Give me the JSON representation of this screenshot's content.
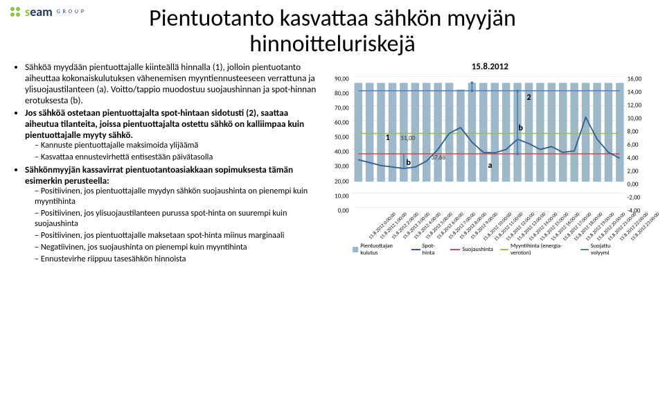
{
  "logo": {
    "brand_s": "s",
    "brand_rest": "eam",
    "sub": "G R O U P"
  },
  "title": "Pientuotanto kasvattaa sähkön myyjän hinnoitteluriskejä",
  "bullets": {
    "p1": "Sähköä myydään pientuottajalle kiinteällä hinnalla (1), jolloin pientuotanto aiheuttaa kokonaiskulutuksen vähenemisen myyntiennusteeseen verrattuna ja ylisuojaustilanteen (a). Voitto/tappio  muodostuu suojaushinnan ja spot-hinnan erotuksesta (b).",
    "p2": "Jos sähköä ostetaan pientuottajalta spot-hintaan sidotusti (2), saattaa aiheutua tilanteita, joissa pientuottajalta ostettu sähkö on kalliimpaa kuin pientuottajalle myyty sähkö.",
    "p2a": "Kannuste pientuottajalle maksimoida ylijäämä",
    "p2b": "Kasvattaa ennustevirhettä entisestään päivätasolla",
    "p3": "Sähkönmyyjän kassavirrat pientuotantoasiakkaan sopimuksesta tämän esimerkin perusteella:",
    "p3a": "Positiivinen, jos pientuottajalle myydyn sähkön suojaushinta on pienempi kuin myyntihinta",
    "p3b": "Positiivinen, jos ylisuojaustilanteen purussa spot-hinta on suurempi kuin suojaushinta",
    "p3c": "Positiivinen, jos pientuottajalle maksetaan spot-hinta miinus marginaali",
    "p3d": "Negatiivinen, jos suojaushinta on pienempi kuin myyntihinta",
    "p3e": "Ennustevirhe riippuu tasesähkön hinnoista"
  },
  "chart": {
    "title": "15.8.2012",
    "y_left": {
      "min": 0,
      "max": 90,
      "ticks": [
        0,
        10,
        20,
        30,
        40,
        50,
        60,
        70,
        80,
        90
      ]
    },
    "y_right": {
      "min": -4,
      "max": 16,
      "ticks": [
        -4,
        -2,
        0,
        2,
        4,
        6,
        8,
        10,
        12,
        14,
        16
      ]
    },
    "x_labels": [
      "15.8.2012 0:00:00",
      "15.8.2012 1:00:00",
      "15.8.2012 2:00:00",
      "15.8.2012 3:00:00",
      "15.8.2012 4:00:00",
      "15.8.2012 5:00:00",
      "15.8.2012 6:00:00",
      "15.8.2012 7:00:00",
      "15.8.2012 8:00:00",
      "15.8.2012 9:00:00",
      "15.8.2012 10:00:00",
      "15.8.2012 11:00:00",
      "15.8.2012 12:00:00",
      "15.8.2012 13:00:00",
      "15.8.2012 14:00:00",
      "15.8.2012 15:00:00",
      "15.8.2012 16:00:00",
      "15.8.2012 17:00:00",
      "15.8.2012 18:00:00",
      "15.8.2012 19:00:00",
      "15.8.2012 20:00:00",
      "15.8.2012 21:00:00",
      "15.8.2012 22:00:00",
      "15.8.2012 23:00:00"
    ],
    "series": {
      "kulutus": {
        "name": "Pientuottajan kulutus",
        "color": "#9fb8c9",
        "type": "bar",
        "values": [
          15,
          15,
          15,
          15,
          15,
          15,
          15,
          15,
          15,
          14,
          15,
          15,
          15,
          15,
          15,
          15,
          15,
          15,
          15,
          15,
          15,
          15,
          15,
          15
        ]
      },
      "spot": {
        "name": "Spot-hinta",
        "color": "#2c5f8d",
        "type": "line",
        "values": [
          33,
          31,
          29,
          28,
          27,
          28,
          32,
          40,
          51,
          55,
          45,
          38,
          37.68,
          40,
          47,
          44,
          40,
          42,
          38,
          39,
          62,
          47,
          38,
          34
        ]
      },
      "suojaus": {
        "name": "Suojaushinta",
        "color": "#c0504d",
        "type": "line",
        "values": [
          37,
          37,
          37,
          37,
          37,
          37,
          37,
          37,
          37,
          37,
          37,
          37,
          37,
          37,
          37,
          37,
          37,
          37,
          37,
          37,
          37,
          37,
          37,
          37
        ]
      },
      "myynti": {
        "name": "Myyntihinta (energia-veroton)",
        "color": "#9bbb59",
        "type": "line",
        "values": [
          51,
          51,
          51,
          51,
          51,
          51,
          51,
          51,
          51,
          51,
          51,
          51,
          51,
          51,
          51,
          51,
          51,
          51,
          51,
          51,
          51,
          51,
          51,
          51
        ]
      },
      "suojattu": {
        "name": "Suojattu volyymi",
        "color": "#4f81bd",
        "type": "line-right",
        "values": [
          13.8,
          13.8,
          13.8,
          13.8,
          13.8,
          13.8,
          13.8,
          13.8,
          13.8,
          13.8,
          13.8,
          13.8,
          13.8,
          13.8,
          13.8,
          13.8,
          13.8,
          13.8,
          13.8,
          13.8,
          13.8,
          13.8,
          13.8,
          13.8
        ]
      }
    },
    "annotations": {
      "label1": "1",
      "label2": "2",
      "labela": "a",
      "labelb": "b",
      "labelb2": "b",
      "val1": "51,00",
      "val2": "37,68"
    },
    "plot_bg": "#ffffff",
    "grid_color": "#d9d9d9"
  }
}
